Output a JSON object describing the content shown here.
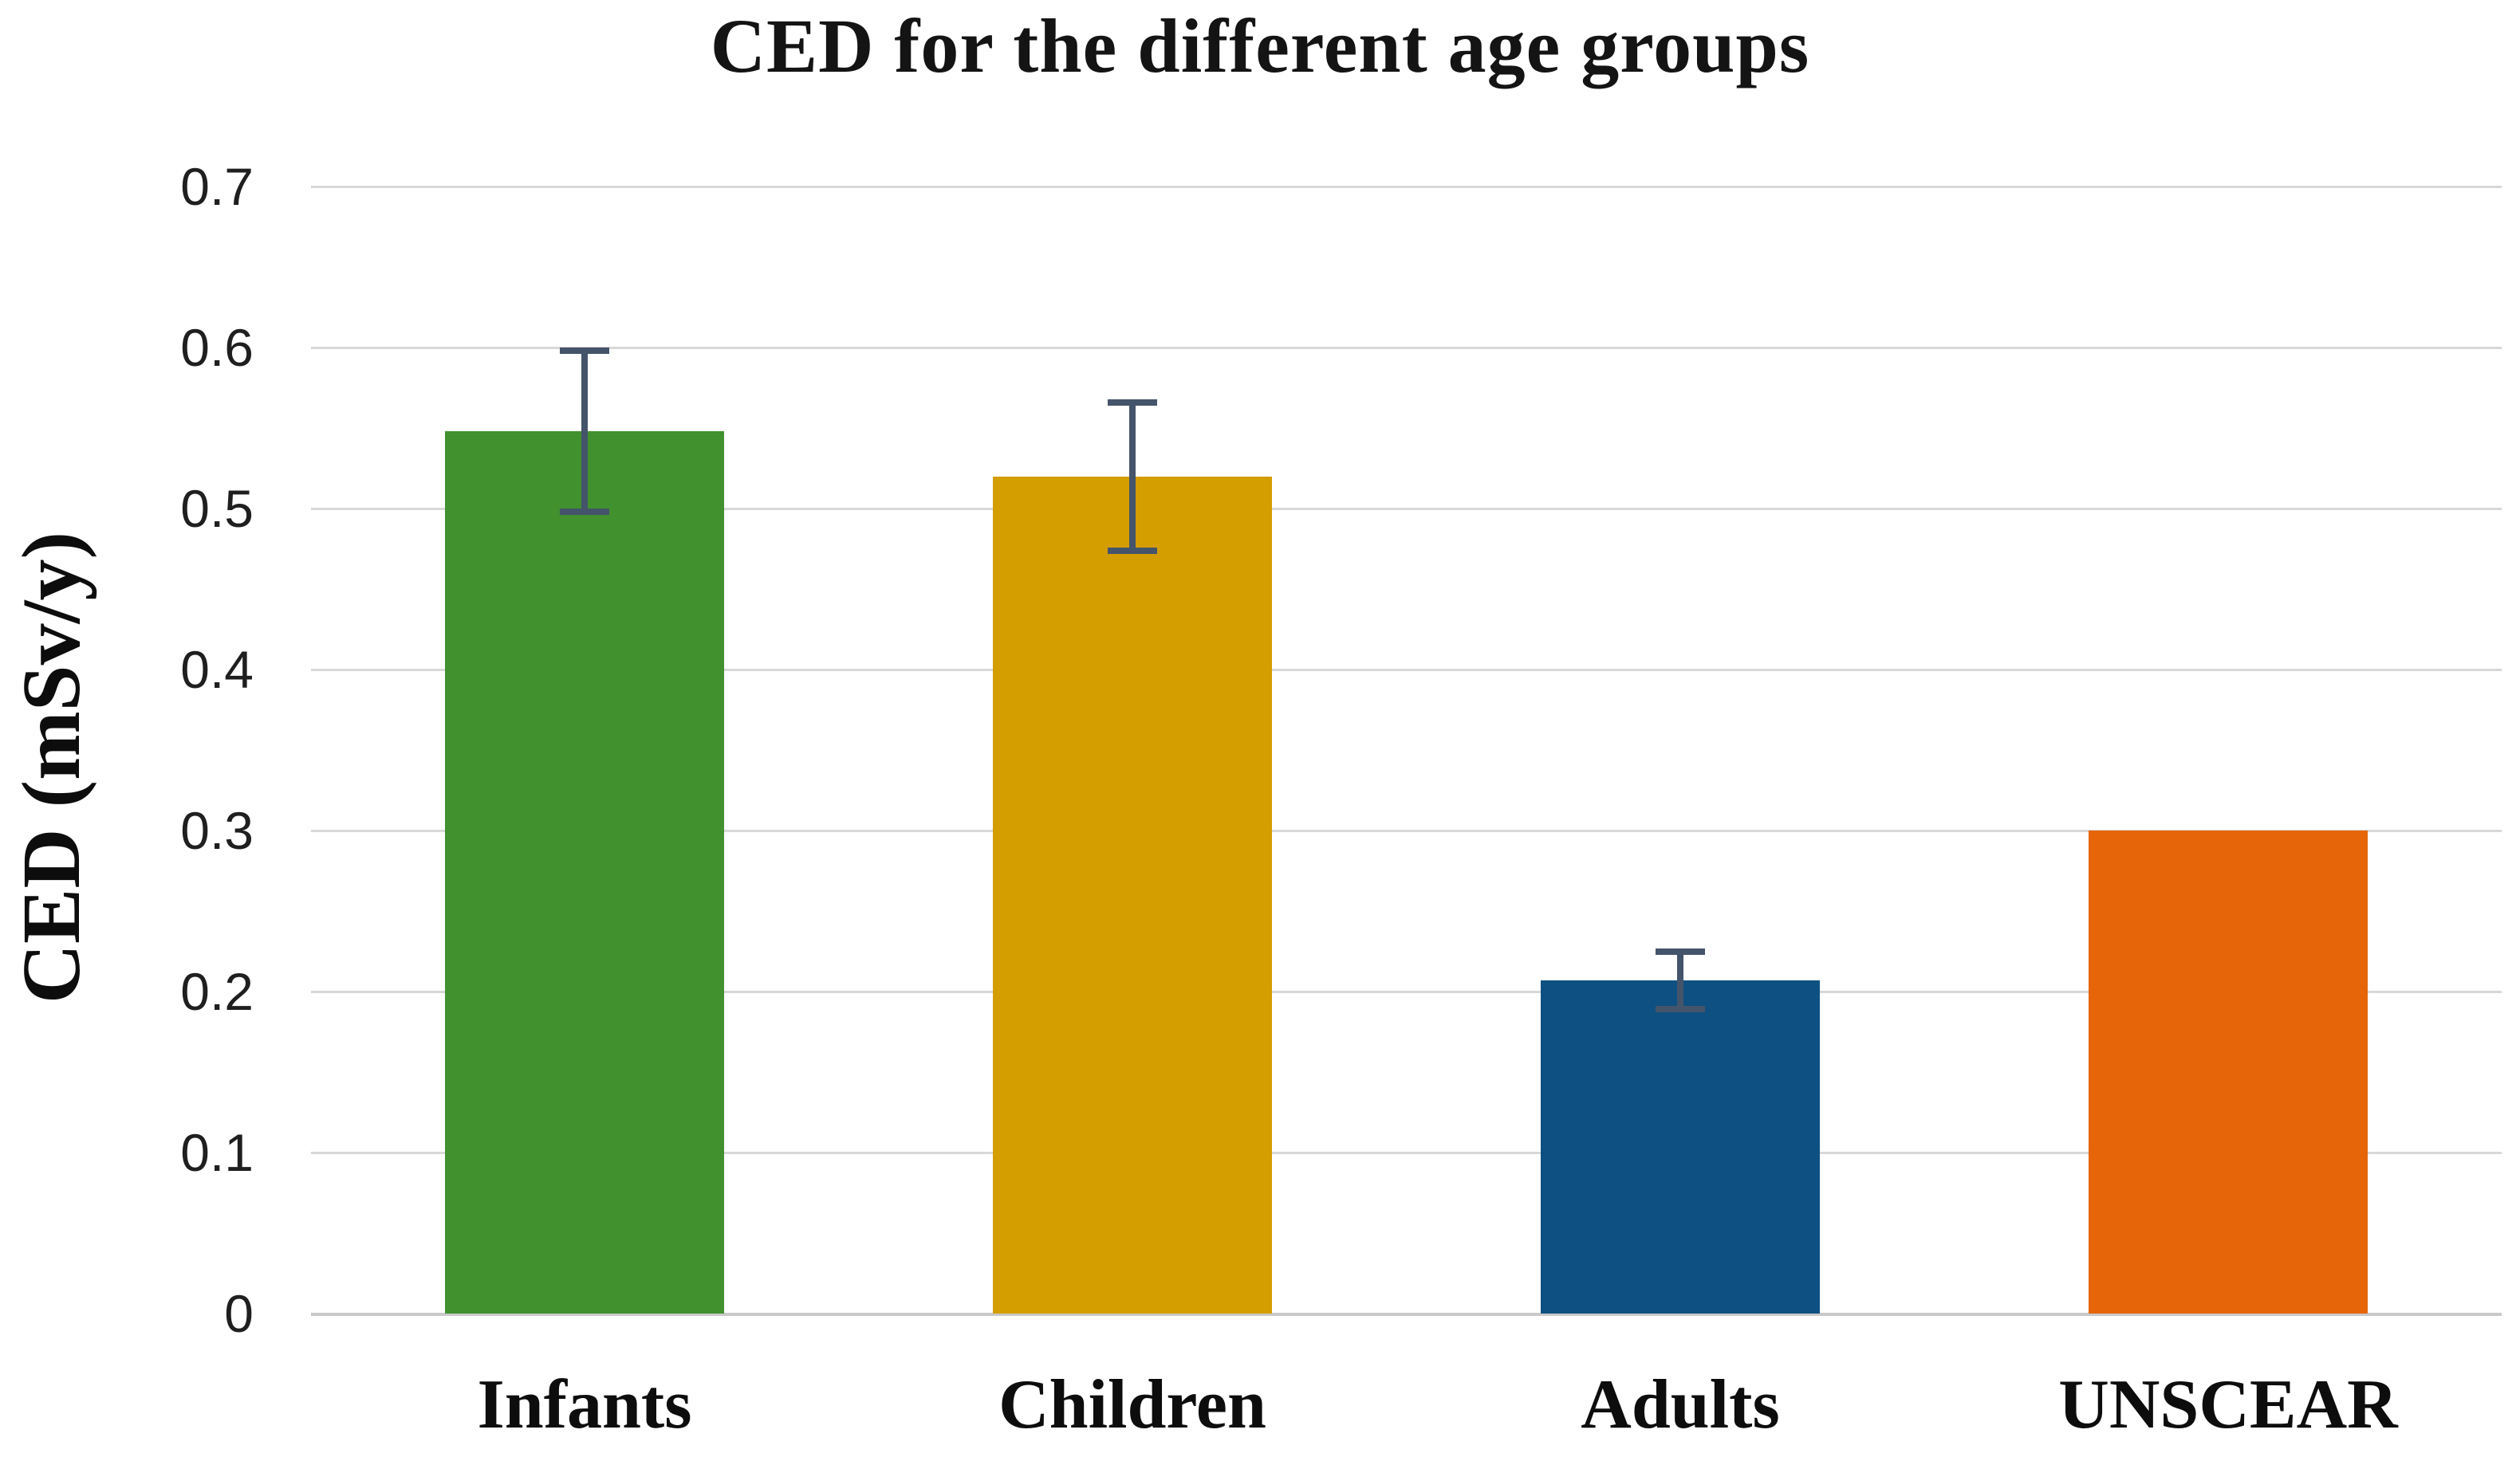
{
  "chart_data": {
    "type": "bar",
    "title": "CED for the different age groups",
    "xlabel": "",
    "ylabel": "CED (mSv/y)",
    "categories": [
      "Infants",
      "Children",
      "Adults",
      "UNSCEAR"
    ],
    "values": [
      0.548,
      0.52,
      0.207,
      0.3
    ],
    "errors": [
      0.05,
      0.046,
      0.018,
      null
    ],
    "bar_colors": [
      "#41912f",
      "#d49d00",
      "#0e5081",
      "#e56508"
    ],
    "error_bar_color": "#44546a",
    "gridline_color": "#d8d8d8",
    "yticks": [
      "0",
      "0.1",
      "0.2",
      "0.3",
      "0.4",
      "0.5",
      "0.6",
      "0.7"
    ],
    "ytick_values": [
      0,
      0.1,
      0.2,
      0.3,
      0.4,
      0.5,
      0.6,
      0.7
    ],
    "ylim": [
      0,
      0.7
    ],
    "grid": true,
    "legend": null
  }
}
